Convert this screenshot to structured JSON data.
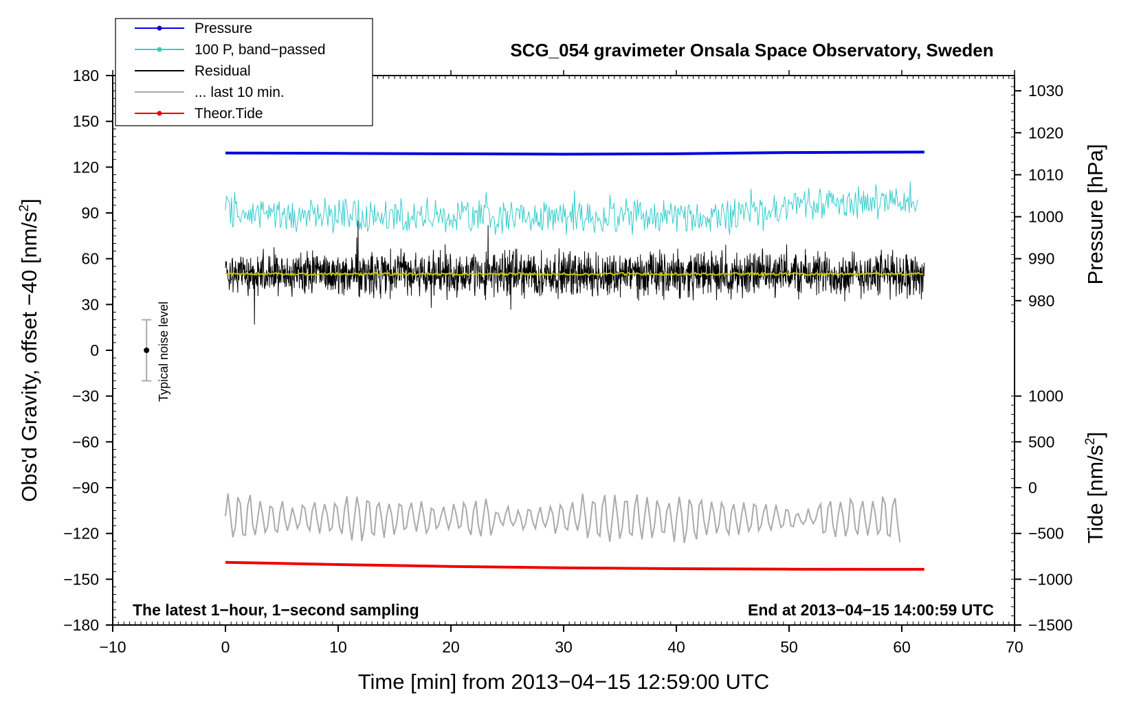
{
  "chart_data": {
    "type": "line",
    "title": "SCG_054 gravimeter Onsala Space Observatory, Sweden",
    "xlabel": "Time [min] from 2013−04−15 12:59:00 UTC",
    "ylabel_left": "Obs'd Gravity, offset −40 [nm/s²]",
    "ylabel_left_main": "Obs'd Gravity, offset −40 [nm/s",
    "ylabel_right_pressure": "Pressure [hPa]",
    "ylabel_right_tide": "Tide [nm/s",
    "superscript": "2",
    "ylabel_right_tide_close": "]",
    "ylabel_left_close": "]",
    "xlim": [
      -10,
      70
    ],
    "ylim": [
      -180,
      180
    ],
    "xticks": [
      -10,
      0,
      10,
      20,
      30,
      40,
      50,
      60,
      70
    ],
    "xtick_labels": [
      "−10",
      "0",
      "10",
      "20",
      "30",
      "40",
      "50",
      "60",
      "70"
    ],
    "yticks": [
      180,
      150,
      120,
      90,
      60,
      30,
      0,
      -30,
      -60,
      -90,
      -120,
      -150,
      -180
    ],
    "ytick_labels": [
      "180",
      "150",
      "120",
      "90",
      "60",
      "30",
      "0",
      "−30",
      "−60",
      "−90",
      "−120",
      "−150",
      "−180"
    ],
    "pressure_axis": {
      "ticks": [
        1030,
        1020,
        1010,
        1000,
        990,
        980
      ],
      "tick_labels": [
        "1030",
        "1020",
        "1010",
        "1000",
        "990",
        "980"
      ],
      "mapping": {
        "value_a": 990,
        "gravity_a": 60,
        "value_b": 980,
        "gravity_b": 32.5
      }
    },
    "tide_axis": {
      "ticks": [
        1000,
        500,
        0,
        -500,
        -1000,
        -1500
      ],
      "tick_labels": [
        "1000",
        "500",
        "0",
        "−500",
        "−1000",
        "−1500"
      ],
      "mapping": {
        "value_a": 0,
        "gravity_a": -90,
        "value_b": -1500,
        "gravity_b": -180
      }
    },
    "annotations": {
      "bottom_left": "The latest 1−hour, 1−second sampling",
      "bottom_right": "End at 2013−04−15 14:00:59 UTC",
      "noise_label": "Typical noise level"
    },
    "noise_bar": {
      "x": -7,
      "center": 0,
      "half_range": 20
    },
    "legend": {
      "position": "top-left",
      "entries": [
        {
          "label": "Pressure",
          "color": "#0000dd",
          "marker": true
        },
        {
          "label": "100 P, band−passed",
          "color": "#33cccc",
          "marker": true
        },
        {
          "label": "Residual",
          "color": "#000000",
          "marker": false
        },
        {
          "label": "... last 10 min.",
          "color": "#aaaaaa",
          "marker": false
        },
        {
          "label": "Theor.Tide",
          "color": "#ee0000",
          "marker": true
        }
      ]
    },
    "series": [
      {
        "name": "Pressure",
        "axis": "pressure",
        "color": "#0000dd",
        "x": [
          0,
          10,
          20,
          30,
          40,
          46,
          50,
          62
        ],
        "values": [
          1015.2,
          1015.1,
          1015.0,
          1014.9,
          1015.0,
          1015.2,
          1015.3,
          1015.4
        ]
      },
      {
        "name": "100 P, band-passed",
        "axis": "gravity",
        "color": "#33cccc",
        "x_range": [
          0,
          61.5
        ],
        "mean_path": {
          "x": [
            0,
            15,
            30,
            45,
            52,
            61.5
          ],
          "y": [
            90,
            88,
            87,
            87,
            97,
            98
          ]
        },
        "amplitude": 11,
        "min": 68,
        "max": 124
      },
      {
        "name": "Residual",
        "axis": "gravity",
        "color": "#000000",
        "x_range": [
          0,
          62
        ],
        "mean": 50,
        "amplitude": 14,
        "min": 15,
        "max": 85
      },
      {
        "name": "Residual smoothed",
        "axis": "gravity",
        "color": "#c8c800",
        "x_range": [
          0,
          62
        ],
        "mean": 50
      },
      {
        "name": "... last 10 min.",
        "axis": "gravity",
        "color": "#aaaaaa",
        "x_range": [
          0,
          60
        ],
        "mean": -110,
        "amplitude": 14,
        "min": -140,
        "max": -88
      },
      {
        "name": "Theor.Tide",
        "axis": "tide",
        "color": "#ee0000",
        "x": [
          0,
          10,
          20,
          30,
          40,
          50,
          62
        ],
        "values": [
          -815,
          -840,
          -860,
          -875,
          -885,
          -890,
          -892
        ]
      }
    ]
  }
}
